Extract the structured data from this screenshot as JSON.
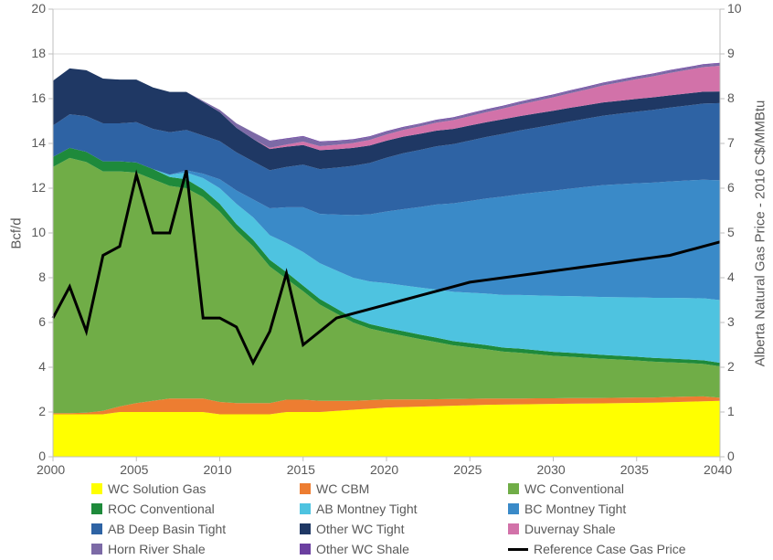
{
  "chart": {
    "type": "stacked-area-with-line",
    "background_color": "#ffffff",
    "grid_color": "#d9d9d9",
    "tick_color": "#bfbfbf",
    "text_color": "#595959",
    "font_family": "Arial",
    "tick_fontsize": 14,
    "axis_label_fontsize": 15,
    "line_width": 3,
    "x": {
      "min": 2000,
      "max": 2040,
      "tick_step": 5,
      "ticks": [
        "2000",
        "2005",
        "2010",
        "2015",
        "2020",
        "2025",
        "2030",
        "2035",
        "2040"
      ]
    },
    "y_left": {
      "label": "Bcf/d",
      "min": 0,
      "max": 20,
      "tick_step": 2,
      "ticks": [
        "0",
        "2",
        "4",
        "6",
        "8",
        "10",
        "12",
        "14",
        "16",
        "18",
        "20"
      ]
    },
    "y_right": {
      "label": "Alberta Natural Gas Price - 2016 C$/MMBtu",
      "min": 0,
      "max": 10,
      "tick_step": 1,
      "ticks": [
        "0",
        "1",
        "2",
        "3",
        "4",
        "5",
        "6",
        "7",
        "8",
        "9",
        "10"
      ]
    },
    "years": [
      2000,
      2001,
      2002,
      2003,
      2004,
      2005,
      2006,
      2007,
      2008,
      2009,
      2010,
      2011,
      2012,
      2013,
      2014,
      2015,
      2016,
      2017,
      2018,
      2019,
      2020,
      2021,
      2022,
      2023,
      2024,
      2025,
      2026,
      2027,
      2028,
      2029,
      2030,
      2031,
      2032,
      2033,
      2034,
      2035,
      2036,
      2037,
      2038,
      2039,
      2040
    ],
    "series": [
      {
        "name": "WC Solution Gas",
        "color": "#ffff00",
        "values": [
          1.9,
          1.9,
          1.9,
          1.9,
          2.0,
          2.0,
          2.0,
          2.0,
          2.0,
          2.0,
          1.9,
          1.9,
          1.9,
          1.9,
          2.0,
          2.0,
          2.0,
          2.05,
          2.1,
          2.15,
          2.2,
          2.22,
          2.24,
          2.26,
          2.28,
          2.3,
          2.32,
          2.33,
          2.34,
          2.35,
          2.36,
          2.37,
          2.38,
          2.39,
          2.4,
          2.41,
          2.42,
          2.44,
          2.46,
          2.48,
          2.5
        ]
      },
      {
        "name": "WC CBM",
        "color": "#ed7d31",
        "values": [
          0.05,
          0.05,
          0.07,
          0.15,
          0.25,
          0.4,
          0.5,
          0.6,
          0.6,
          0.6,
          0.55,
          0.5,
          0.5,
          0.5,
          0.55,
          0.55,
          0.5,
          0.45,
          0.4,
          0.38,
          0.36,
          0.34,
          0.32,
          0.31,
          0.3,
          0.29,
          0.28,
          0.27,
          0.26,
          0.26,
          0.25,
          0.25,
          0.24,
          0.24,
          0.24,
          0.24,
          0.23,
          0.23,
          0.23,
          0.22,
          0.14
        ]
      },
      {
        "name": "WC Conventional",
        "color": "#70ad47",
        "values": [
          11.0,
          11.4,
          11.2,
          10.7,
          10.5,
          10.3,
          9.9,
          9.5,
          9.4,
          9.0,
          8.5,
          7.7,
          7.0,
          6.1,
          5.4,
          4.85,
          4.3,
          3.9,
          3.5,
          3.2,
          3.0,
          2.85,
          2.7,
          2.55,
          2.4,
          2.3,
          2.2,
          2.1,
          2.05,
          1.97,
          1.9,
          1.85,
          1.8,
          1.75,
          1.7,
          1.65,
          1.6,
          1.55,
          1.5,
          1.45,
          1.4
        ]
      },
      {
        "name": "ROC Conventional",
        "color": "#1e8a3b",
        "values": [
          0.45,
          0.45,
          0.45,
          0.45,
          0.45,
          0.45,
          0.45,
          0.4,
          0.4,
          0.35,
          0.35,
          0.3,
          0.3,
          0.3,
          0.3,
          0.25,
          0.25,
          0.22,
          0.2,
          0.2,
          0.2,
          0.2,
          0.2,
          0.2,
          0.19,
          0.19,
          0.19,
          0.18,
          0.18,
          0.18,
          0.18,
          0.18,
          0.18,
          0.17,
          0.17,
          0.17,
          0.17,
          0.17,
          0.16,
          0.16,
          0.16
        ]
      },
      {
        "name": "AB Montney Tight",
        "color": "#4ec3e0",
        "values": [
          0.0,
          0.0,
          0.0,
          0.0,
          0.0,
          0.0,
          0.0,
          0.1,
          0.3,
          0.5,
          0.7,
          0.9,
          1.0,
          1.1,
          1.3,
          1.5,
          1.6,
          1.7,
          1.8,
          1.9,
          2.0,
          2.05,
          2.1,
          2.15,
          2.2,
          2.25,
          2.3,
          2.35,
          2.4,
          2.45,
          2.5,
          2.53,
          2.56,
          2.59,
          2.62,
          2.65,
          2.68,
          2.71,
          2.74,
          2.77,
          2.8
        ]
      },
      {
        "name": "BC Montney Tight",
        "color": "#3a8ac8",
        "values": [
          0.0,
          0.0,
          0.0,
          0.0,
          0.0,
          0.0,
          0.0,
          0.0,
          0.1,
          0.2,
          0.4,
          0.6,
          0.8,
          1.2,
          1.6,
          2.0,
          2.2,
          2.5,
          2.8,
          3.0,
          3.2,
          3.4,
          3.6,
          3.8,
          3.95,
          4.1,
          4.25,
          4.4,
          4.5,
          4.6,
          4.7,
          4.8,
          4.9,
          5.0,
          5.05,
          5.1,
          5.15,
          5.2,
          5.25,
          5.3,
          5.35
        ]
      },
      {
        "name": "AB Deep Basin Tight",
        "color": "#2e63a4",
        "values": [
          1.4,
          1.5,
          1.6,
          1.7,
          1.7,
          1.8,
          1.8,
          1.9,
          1.8,
          1.7,
          1.7,
          1.7,
          1.7,
          1.7,
          1.8,
          1.9,
          2.0,
          2.1,
          2.2,
          2.3,
          2.4,
          2.5,
          2.55,
          2.6,
          2.65,
          2.7,
          2.75,
          2.8,
          2.85,
          2.9,
          2.95,
          3.0,
          3.05,
          3.1,
          3.15,
          3.2,
          3.25,
          3.3,
          3.35,
          3.4,
          3.45
        ]
      },
      {
        "name": "Other WC Tight",
        "color": "#1f3864",
        "values": [
          2.0,
          2.05,
          2.05,
          2.0,
          1.95,
          1.9,
          1.85,
          1.8,
          1.7,
          1.5,
          1.3,
          1.1,
          1.0,
          0.95,
          0.9,
          0.88,
          0.85,
          0.82,
          0.8,
          0.78,
          0.76,
          0.74,
          0.72,
          0.7,
          0.68,
          0.67,
          0.66,
          0.65,
          0.64,
          0.63,
          0.62,
          0.61,
          0.6,
          0.59,
          0.58,
          0.57,
          0.56,
          0.55,
          0.54,
          0.53,
          0.52
        ]
      },
      {
        "name": "Duvernay Shale",
        "color": "#d272a9",
        "values": [
          0.0,
          0.0,
          0.0,
          0.0,
          0.0,
          0.0,
          0.0,
          0.0,
          0.0,
          0.0,
          0.0,
          0.0,
          0.0,
          0.05,
          0.1,
          0.15,
          0.18,
          0.2,
          0.22,
          0.25,
          0.28,
          0.3,
          0.33,
          0.36,
          0.39,
          0.42,
          0.45,
          0.48,
          0.52,
          0.56,
          0.6,
          0.65,
          0.7,
          0.76,
          0.82,
          0.88,
          0.94,
          1.0,
          1.05,
          1.1,
          1.15
        ]
      },
      {
        "name": "Horn River Shale",
        "color": "#7c6aa6",
        "values": [
          0.0,
          0.0,
          0.0,
          0.0,
          0.0,
          0.0,
          0.0,
          0.0,
          0.0,
          0.05,
          0.1,
          0.2,
          0.3,
          0.3,
          0.25,
          0.22,
          0.18,
          0.16,
          0.14,
          0.13,
          0.12,
          0.11,
          0.1,
          0.1,
          0.1,
          0.1,
          0.1,
          0.1,
          0.1,
          0.1,
          0.1,
          0.1,
          0.1,
          0.1,
          0.1,
          0.1,
          0.1,
          0.1,
          0.1,
          0.1,
          0.1
        ]
      },
      {
        "name": "Other WC Shale",
        "color": "#6b3fa0",
        "values": [
          0.0,
          0.0,
          0.0,
          0.0,
          0.0,
          0.0,
          0.0,
          0.0,
          0.0,
          0.0,
          0.0,
          0.0,
          0.0,
          0.02,
          0.03,
          0.03,
          0.03,
          0.03,
          0.03,
          0.03,
          0.03,
          0.03,
          0.03,
          0.03,
          0.03,
          0.03,
          0.03,
          0.03,
          0.03,
          0.03,
          0.03,
          0.03,
          0.03,
          0.03,
          0.03,
          0.03,
          0.03,
          0.03,
          0.03,
          0.03,
          0.03
        ]
      }
    ],
    "line_series": {
      "name": "Reference Case Gas Price",
      "color": "#000000",
      "values": [
        3.1,
        3.8,
        2.8,
        4.5,
        4.7,
        6.3,
        5.0,
        5.0,
        6.4,
        3.1,
        3.1,
        2.9,
        2.1,
        2.8,
        4.1,
        2.5,
        2.8,
        3.1,
        3.2,
        3.3,
        3.4,
        3.5,
        3.6,
        3.7,
        3.8,
        3.9,
        3.95,
        4.0,
        4.05,
        4.1,
        4.15,
        4.2,
        4.25,
        4.3,
        4.35,
        4.4,
        4.45,
        4.5,
        4.6,
        4.7,
        4.8
      ]
    },
    "legend_order": [
      "WC Solution Gas",
      "WC CBM",
      "WC Conventional",
      "ROC Conventional",
      "AB Montney Tight",
      "BC Montney Tight",
      "AB Deep Basin Tight",
      "Other WC Tight",
      "Duvernay Shale",
      "Horn River Shale",
      "Other WC Shale",
      "Reference Case Gas Price"
    ]
  }
}
